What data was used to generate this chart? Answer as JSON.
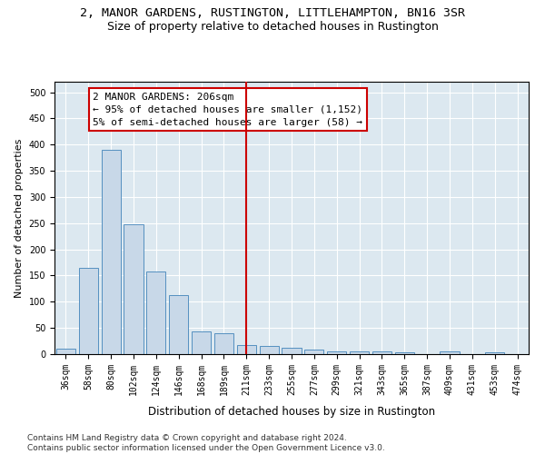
{
  "title1": "2, MANOR GARDENS, RUSTINGTON, LITTLEHAMPTON, BN16 3SR",
  "title2": "Size of property relative to detached houses in Rustington",
  "xlabel": "Distribution of detached houses by size in Rustington",
  "ylabel": "Number of detached properties",
  "categories": [
    "36sqm",
    "58sqm",
    "80sqm",
    "102sqm",
    "124sqm",
    "146sqm",
    "168sqm",
    "189sqm",
    "211sqm",
    "233sqm",
    "255sqm",
    "277sqm",
    "299sqm",
    "321sqm",
    "343sqm",
    "365sqm",
    "387sqm",
    "409sqm",
    "431sqm",
    "453sqm",
    "474sqm"
  ],
  "values": [
    10,
    165,
    390,
    247,
    157,
    113,
    44,
    40,
    17,
    15,
    13,
    8,
    6,
    5,
    5,
    4,
    0,
    5,
    0,
    4,
    0
  ],
  "bar_color": "#c8d8e8",
  "bar_edge_color": "#5590c0",
  "vline_x_index": 8,
  "vline_color": "#cc0000",
  "annotation_line1": "2 MANOR GARDENS: 206sqm",
  "annotation_line2": "← 95% of detached houses are smaller (1,152)",
  "annotation_line3": "5% of semi-detached houses are larger (58) →",
  "annotation_box_color": "#cc0000",
  "ylim": [
    0,
    520
  ],
  "yticks": [
    0,
    50,
    100,
    150,
    200,
    250,
    300,
    350,
    400,
    450,
    500
  ],
  "bg_color": "#dce8f0",
  "grid_color": "#ffffff",
  "footer_text": "Contains HM Land Registry data © Crown copyright and database right 2024.\nContains public sector information licensed under the Open Government Licence v3.0.",
  "title1_fontsize": 9.5,
  "title2_fontsize": 9,
  "xlabel_fontsize": 8.5,
  "ylabel_fontsize": 8,
  "tick_fontsize": 7,
  "annotation_fontsize": 8,
  "footer_fontsize": 6.5
}
